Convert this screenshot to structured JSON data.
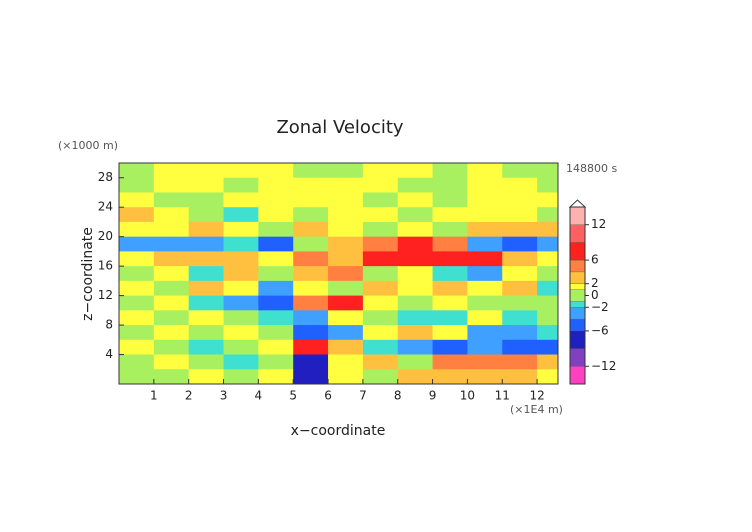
{
  "chart_data": {
    "type": "contour",
    "title": "Zonal Velocity",
    "y_unit": "(×1000 m)",
    "x_unit": "(×1E4 m)",
    "time_label": "148800 s",
    "xlabel": "x−coordinate",
    "ylabel": "z−coordinate",
    "xlim": [
      0,
      12.6
    ],
    "ylim": [
      0,
      30
    ],
    "xticks": [
      1,
      2,
      3,
      4,
      5,
      6,
      7,
      8,
      9,
      10,
      11,
      12
    ],
    "yticks": [
      4,
      8,
      12,
      16,
      20,
      24,
      28
    ],
    "x": [
      0.5,
      1.5,
      2.5,
      3.5,
      4.5,
      5.5,
      6.5,
      7.5,
      8.5,
      9.5,
      10.5,
      11.5,
      12.5
    ],
    "y": [
      29,
      27,
      25,
      23,
      21,
      19,
      17,
      15,
      13,
      11,
      9,
      7,
      5,
      3,
      1
    ],
    "z": [
      [
        0,
        1.5,
        1.5,
        1.5,
        1.5,
        0,
        0,
        1.5,
        1.5,
        0,
        1.5,
        0,
        0
      ],
      [
        0,
        1.5,
        1.5,
        0,
        1.5,
        1.5,
        1.5,
        1.5,
        0,
        0,
        1.5,
        1.5,
        0
      ],
      [
        1.5,
        0,
        0,
        1.5,
        1.5,
        1.5,
        1.5,
        0,
        1.5,
        0,
        1.5,
        1.5,
        1.5
      ],
      [
        3,
        1.5,
        0,
        -1.5,
        1.5,
        0,
        1.5,
        1.5,
        0,
        1.5,
        1.5,
        1.5,
        0
      ],
      [
        1.5,
        1.5,
        3,
        1.5,
        0,
        3,
        1.5,
        0,
        1.5,
        0,
        3,
        3,
        3
      ],
      [
        -3,
        -3,
        -3,
        -1.5,
        -5,
        0,
        3,
        5,
        7,
        5,
        -3,
        -5,
        -3
      ],
      [
        1.5,
        3,
        3,
        3,
        1.5,
        5,
        3,
        7,
        7,
        7,
        7,
        3,
        1.5
      ],
      [
        0,
        1.5,
        -1.5,
        3,
        0,
        3,
        5,
        0,
        1.5,
        -1.5,
        -3,
        1.5,
        0
      ],
      [
        1.5,
        0,
        3,
        1.5,
        -3,
        1.5,
        0,
        3,
        1.5,
        3,
        1.5,
        3,
        -1.5
      ],
      [
        0,
        1.5,
        -1.5,
        -3,
        -5,
        5,
        7,
        1.5,
        0,
        1.5,
        0,
        0,
        0
      ],
      [
        1.5,
        0,
        1.5,
        0,
        -1.5,
        -3,
        1.5,
        0,
        -1.5,
        -1.5,
        1.5,
        -1.5,
        0
      ],
      [
        0,
        1.5,
        0,
        1.5,
        0,
        -5,
        -3,
        1.5,
        3,
        1.5,
        -3,
        -3,
        -1.5
      ],
      [
        1.5,
        0,
        -1.5,
        0,
        1.5,
        7,
        3,
        -1.5,
        -3,
        -5,
        -3,
        -5,
        -5
      ],
      [
        0,
        1.5,
        0,
        -1.5,
        0,
        -7,
        1.5,
        3,
        0,
        5,
        5,
        5,
        3
      ],
      [
        0,
        0,
        1.5,
        0,
        1.5,
        -9,
        1.5,
        0,
        3,
        3,
        3,
        3,
        1.5
      ]
    ],
    "levels": [
      -15,
      -12,
      -9,
      -6,
      -4,
      -2,
      -1,
      1,
      2,
      4,
      6,
      9,
      12,
      15
    ],
    "colors": [
      "#ff40c0",
      "#8040c0",
      "#2020c0",
      "#2060ff",
      "#40a0ff",
      "#40e0d0",
      "#a8f060",
      "#ffff40",
      "#ffc040",
      "#ff8040",
      "#ff2020",
      "#ff6060",
      "#ffb0b0"
    ],
    "cticks": [
      12,
      6,
      2,
      0,
      {
        "value": -2,
        "label": "−2"
      },
      {
        "value": -6,
        "label": "−6"
      },
      {
        "value": -12,
        "label": "−12"
      }
    ]
  }
}
